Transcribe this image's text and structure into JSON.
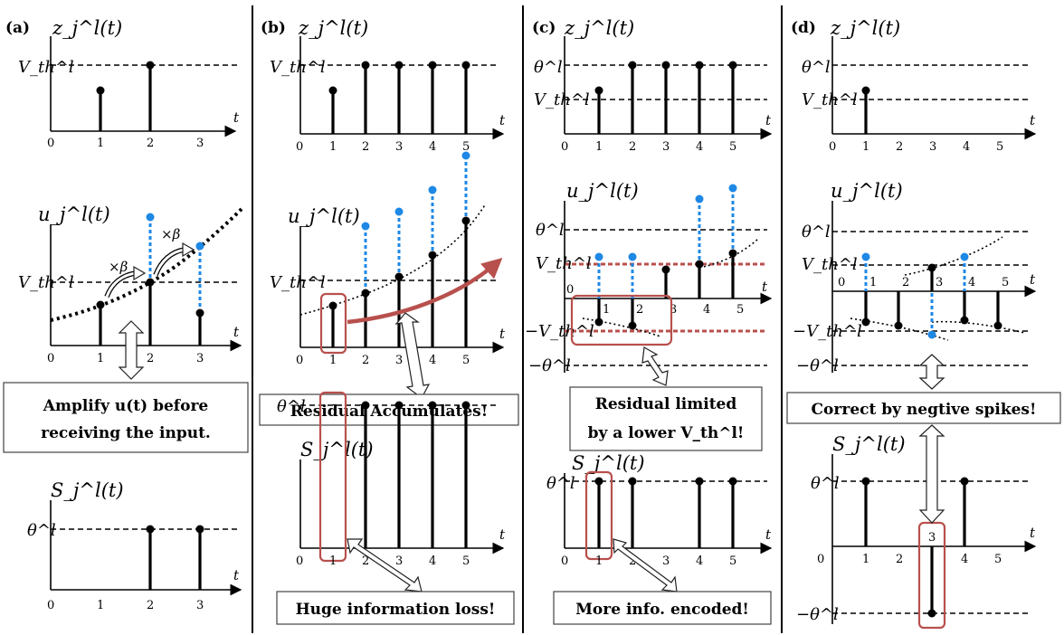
{
  "panels": {
    "a": {
      "label": "(a)",
      "top_ylabel": "z_j^l(t)",
      "mid_ylabel": "u_j^l(t)",
      "bot_ylabel": "S_j^l(t)",
      "level_vth": "V_th^l",
      "level_theta": "θ^l",
      "beta": "×β",
      "ticks": [
        "0",
        "1",
        "2",
        "3"
      ],
      "note_lines": [
        "Amplify u(t) before",
        "receiving the input."
      ]
    },
    "b": {
      "label": "(b)",
      "top_ylabel": "z_j^l(t)",
      "mid_ylabel": "u_j^l(t)",
      "bot_ylabel": "S_j^l(t)",
      "level_vth": "V_th^l",
      "level_theta": "θ^l",
      "ticks": [
        "0",
        "1",
        "2",
        "3",
        "4",
        "5"
      ],
      "note1": "Residual Accumulates!",
      "note2": "Huge information loss!"
    },
    "c": {
      "label": "(c)",
      "top_ylabel": "z_j^l(t)",
      "mid_ylabel": "u_j^l(t)",
      "bot_ylabel": "S_j^l(t)",
      "level_theta": "θ^l",
      "level_vth": "V_th^l",
      "level_neg_vth": "−V_th^l",
      "level_neg_theta": "−θ^l",
      "ticks": [
        "0",
        "1",
        "2",
        "3",
        "4",
        "5"
      ],
      "note_lines": [
        "Residual limited",
        "by a lower V_th^l!"
      ],
      "note2": "More info. encoded!"
    },
    "d": {
      "label": "(d)",
      "top_ylabel": "z_j^l(t)",
      "mid_ylabel": "u_j^l(t)",
      "bot_ylabel": "S_j^l(t)",
      "level_theta": "θ^l",
      "level_vth": "V_th^l",
      "level_neg_vth": "−V_th^l",
      "level_neg_theta": "−θ^l",
      "ticks": [
        "0",
        "1",
        "2",
        "3",
        "4",
        "5"
      ],
      "note": "Correct by negtive spikes!"
    }
  },
  "axis_var": "t",
  "colors": {
    "residual_blue": "#1e88e5",
    "highlight_red": "#b8504d"
  }
}
